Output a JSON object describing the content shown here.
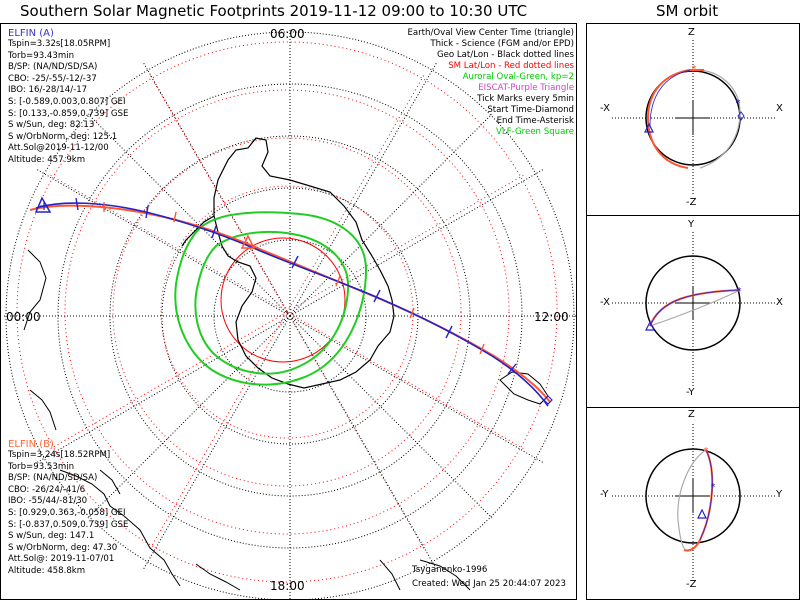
{
  "header": {
    "title": "Southern Solar Magnetic Footprints 2019-11-12 09:00 to 10:30 UTC",
    "sm_title": "SM orbit"
  },
  "map": {
    "time_labels": [
      "06:00",
      "00:00",
      "12:00",
      "18:00"
    ]
  },
  "legend": [
    {
      "text": "Earth/Oval View Center Time (triangle)",
      "color": "#000000"
    },
    {
      "text": "Thick - Science (FGM and/or EPD)",
      "color": "#000000"
    },
    {
      "text": "Geo Lat/Lon - Black dotted lines",
      "color": "#000000"
    },
    {
      "text": "SM Lat/Lon - Red dotted lines",
      "color": "#ff0000"
    },
    {
      "text": "Auroral Oval-Green, kp=2",
      "color": "#00cc00"
    },
    {
      "text": "EISCAT-Purple Triangle",
      "color": "#cc44cc"
    },
    {
      "text": "Tick Marks every 5min",
      "color": "#000000"
    },
    {
      "text": "Start Time-Diamond",
      "color": "#000000"
    },
    {
      "text": "End Time-Asterisk",
      "color": "#000000"
    },
    {
      "text": "VLF-Green Square",
      "color": "#00cc00"
    }
  ],
  "elfin_a": {
    "name": "ELFIN (A)",
    "color": "#3333cc",
    "lines": [
      "Tspin=3.32s[18.05RPM]",
      "Torb=93.43min",
      "B/SP: (NA/ND/SD/SA)",
      "CBO: -25/-55/-12/-37",
      "IBO: 16/-28/14/-17",
      "S: [-0.589,0.003,0.807] GEI",
      "S: [0.133,-0.859,0.739] GSE",
      "S w/Sun, deg: 82.13",
      "S w/OrbNorm, deg: 125.1",
      "Att.Sol@2019-11-12/00",
      "Altitude: 457.9km"
    ]
  },
  "elfin_b": {
    "name": "ELFIN (B)",
    "color": "#ff6633",
    "lines": [
      "Tspin=3.24s[18.52RPM]",
      "Torb=93.53min",
      "B/SP: (NA/ND/SD/SA)",
      "CBO: -26/24/-41/6",
      "IBO: -55/44/-81/30",
      "S: [0.929,0.363,-0.058] GEI",
      "S: [-0.837,0.509,0.739] GSE",
      "S w/Sun, deg: 147.1",
      "S w/OrbNorm, deg: 47.30",
      "Att.Sol@: 2019-11-07/01",
      "Altitude: 458.8km"
    ]
  },
  "footer": {
    "model": "Tsyganenko-1996",
    "created": "Created: Wed Jan 25 20:44:07 2023"
  },
  "sm_panels": [
    {
      "top": "Z",
      "bottom": "-Z",
      "left": "-X",
      "right": "X"
    },
    {
      "top": "Y",
      "bottom": "-Y",
      "left": "-X",
      "right": "X"
    },
    {
      "top": "Z",
      "bottom": "-Z",
      "left": "-Y",
      "right": "Y"
    }
  ],
  "colors": {
    "elfin_a": "#2222cc",
    "elfin_b": "#ff5533",
    "oval": "#22cc22",
    "sm_grid": "#ff0000",
    "geo_grid": "#000000"
  }
}
